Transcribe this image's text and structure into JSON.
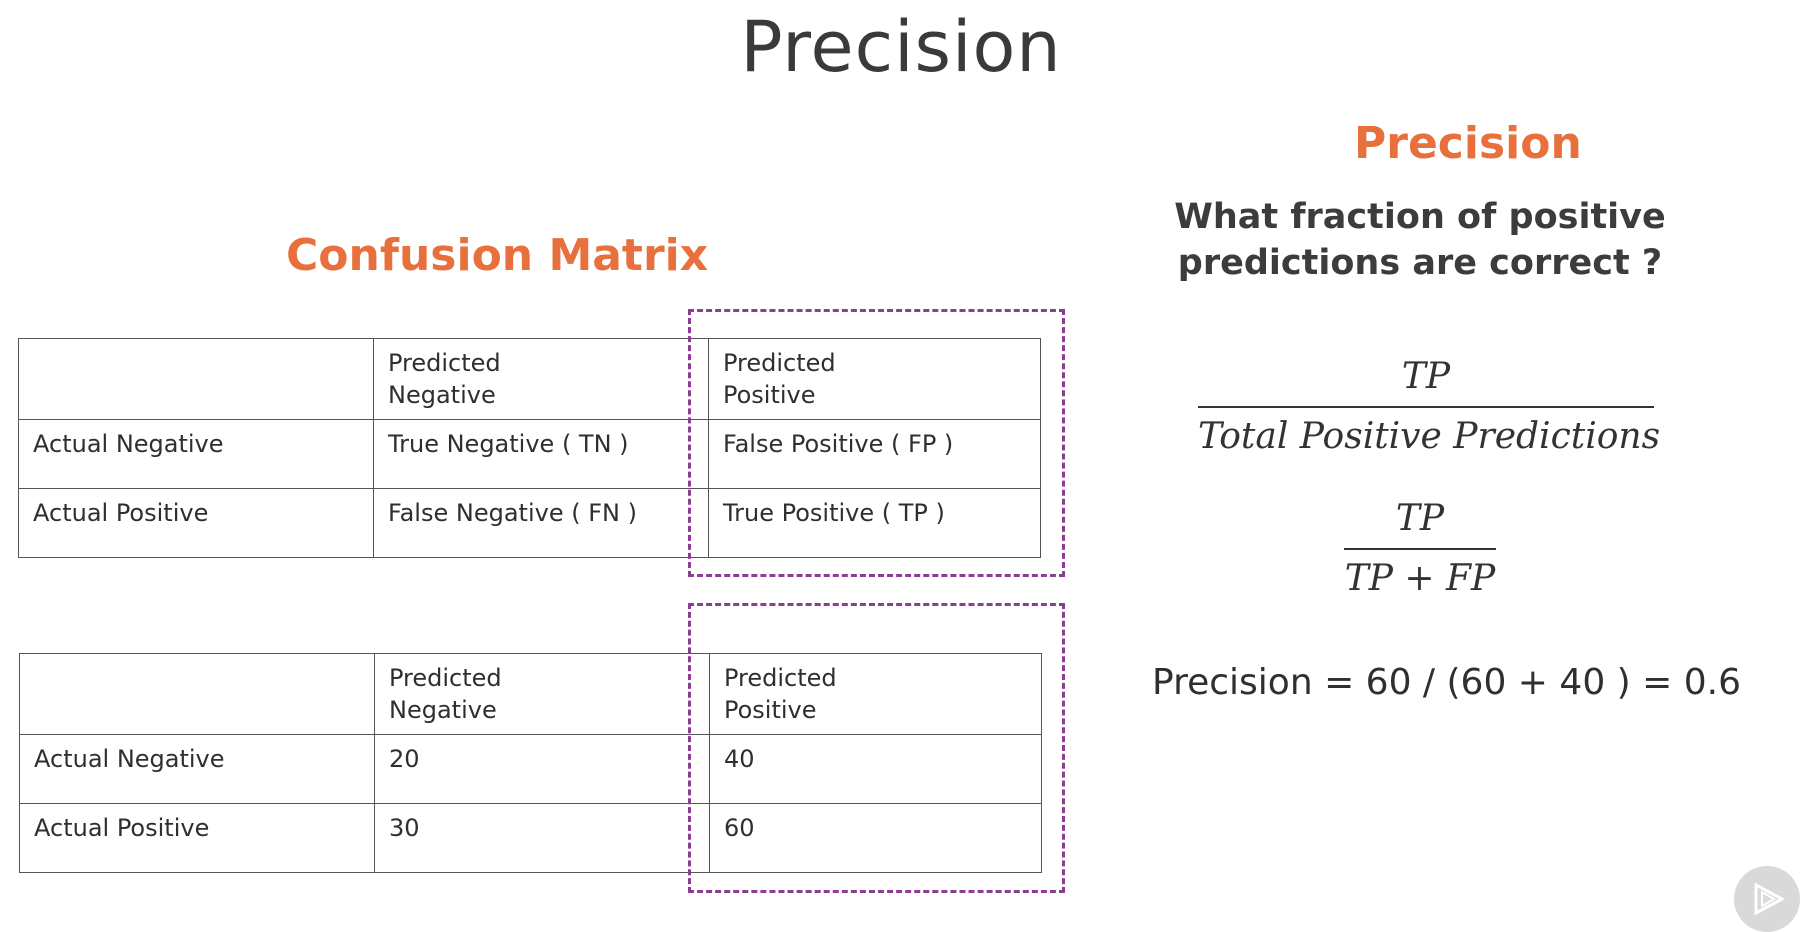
{
  "slide": {
    "title": "Precision"
  },
  "left": {
    "heading": "Confusion Matrix",
    "table_symbolic": {
      "header": [
        "",
        "Predicted\nNegative",
        "Predicted\nPositive"
      ],
      "rows": [
        [
          "Actual Negative",
          "True Negative ( TN )",
          "False Positive ( FP )"
        ],
        [
          "Actual Positive",
          "False Negative ( FN )",
          "True Positive ( TP )"
        ]
      ]
    },
    "table_values": {
      "header": [
        "",
        "Predicted\nNegative",
        "Predicted\nPositive"
      ],
      "rows": [
        [
          "Actual Negative",
          "20",
          "40"
        ],
        [
          "Actual Positive",
          "30",
          "60"
        ]
      ]
    }
  },
  "right": {
    "heading": "Precision",
    "question_line1": "What fraction of positive",
    "question_line2": "predictions are correct ?",
    "formula1": {
      "numerator": "TP",
      "denominator": "Total Positive Predictions"
    },
    "formula2": {
      "numerator": "TP",
      "denominator": "TP + FP"
    },
    "calculation": "Precision = 60 / (60 + 40 ) = 0.6"
  },
  "icons": {
    "watermark": "play-logo-icon",
    "highlight": "#8a3d93",
    "accent": "#e8703c"
  }
}
